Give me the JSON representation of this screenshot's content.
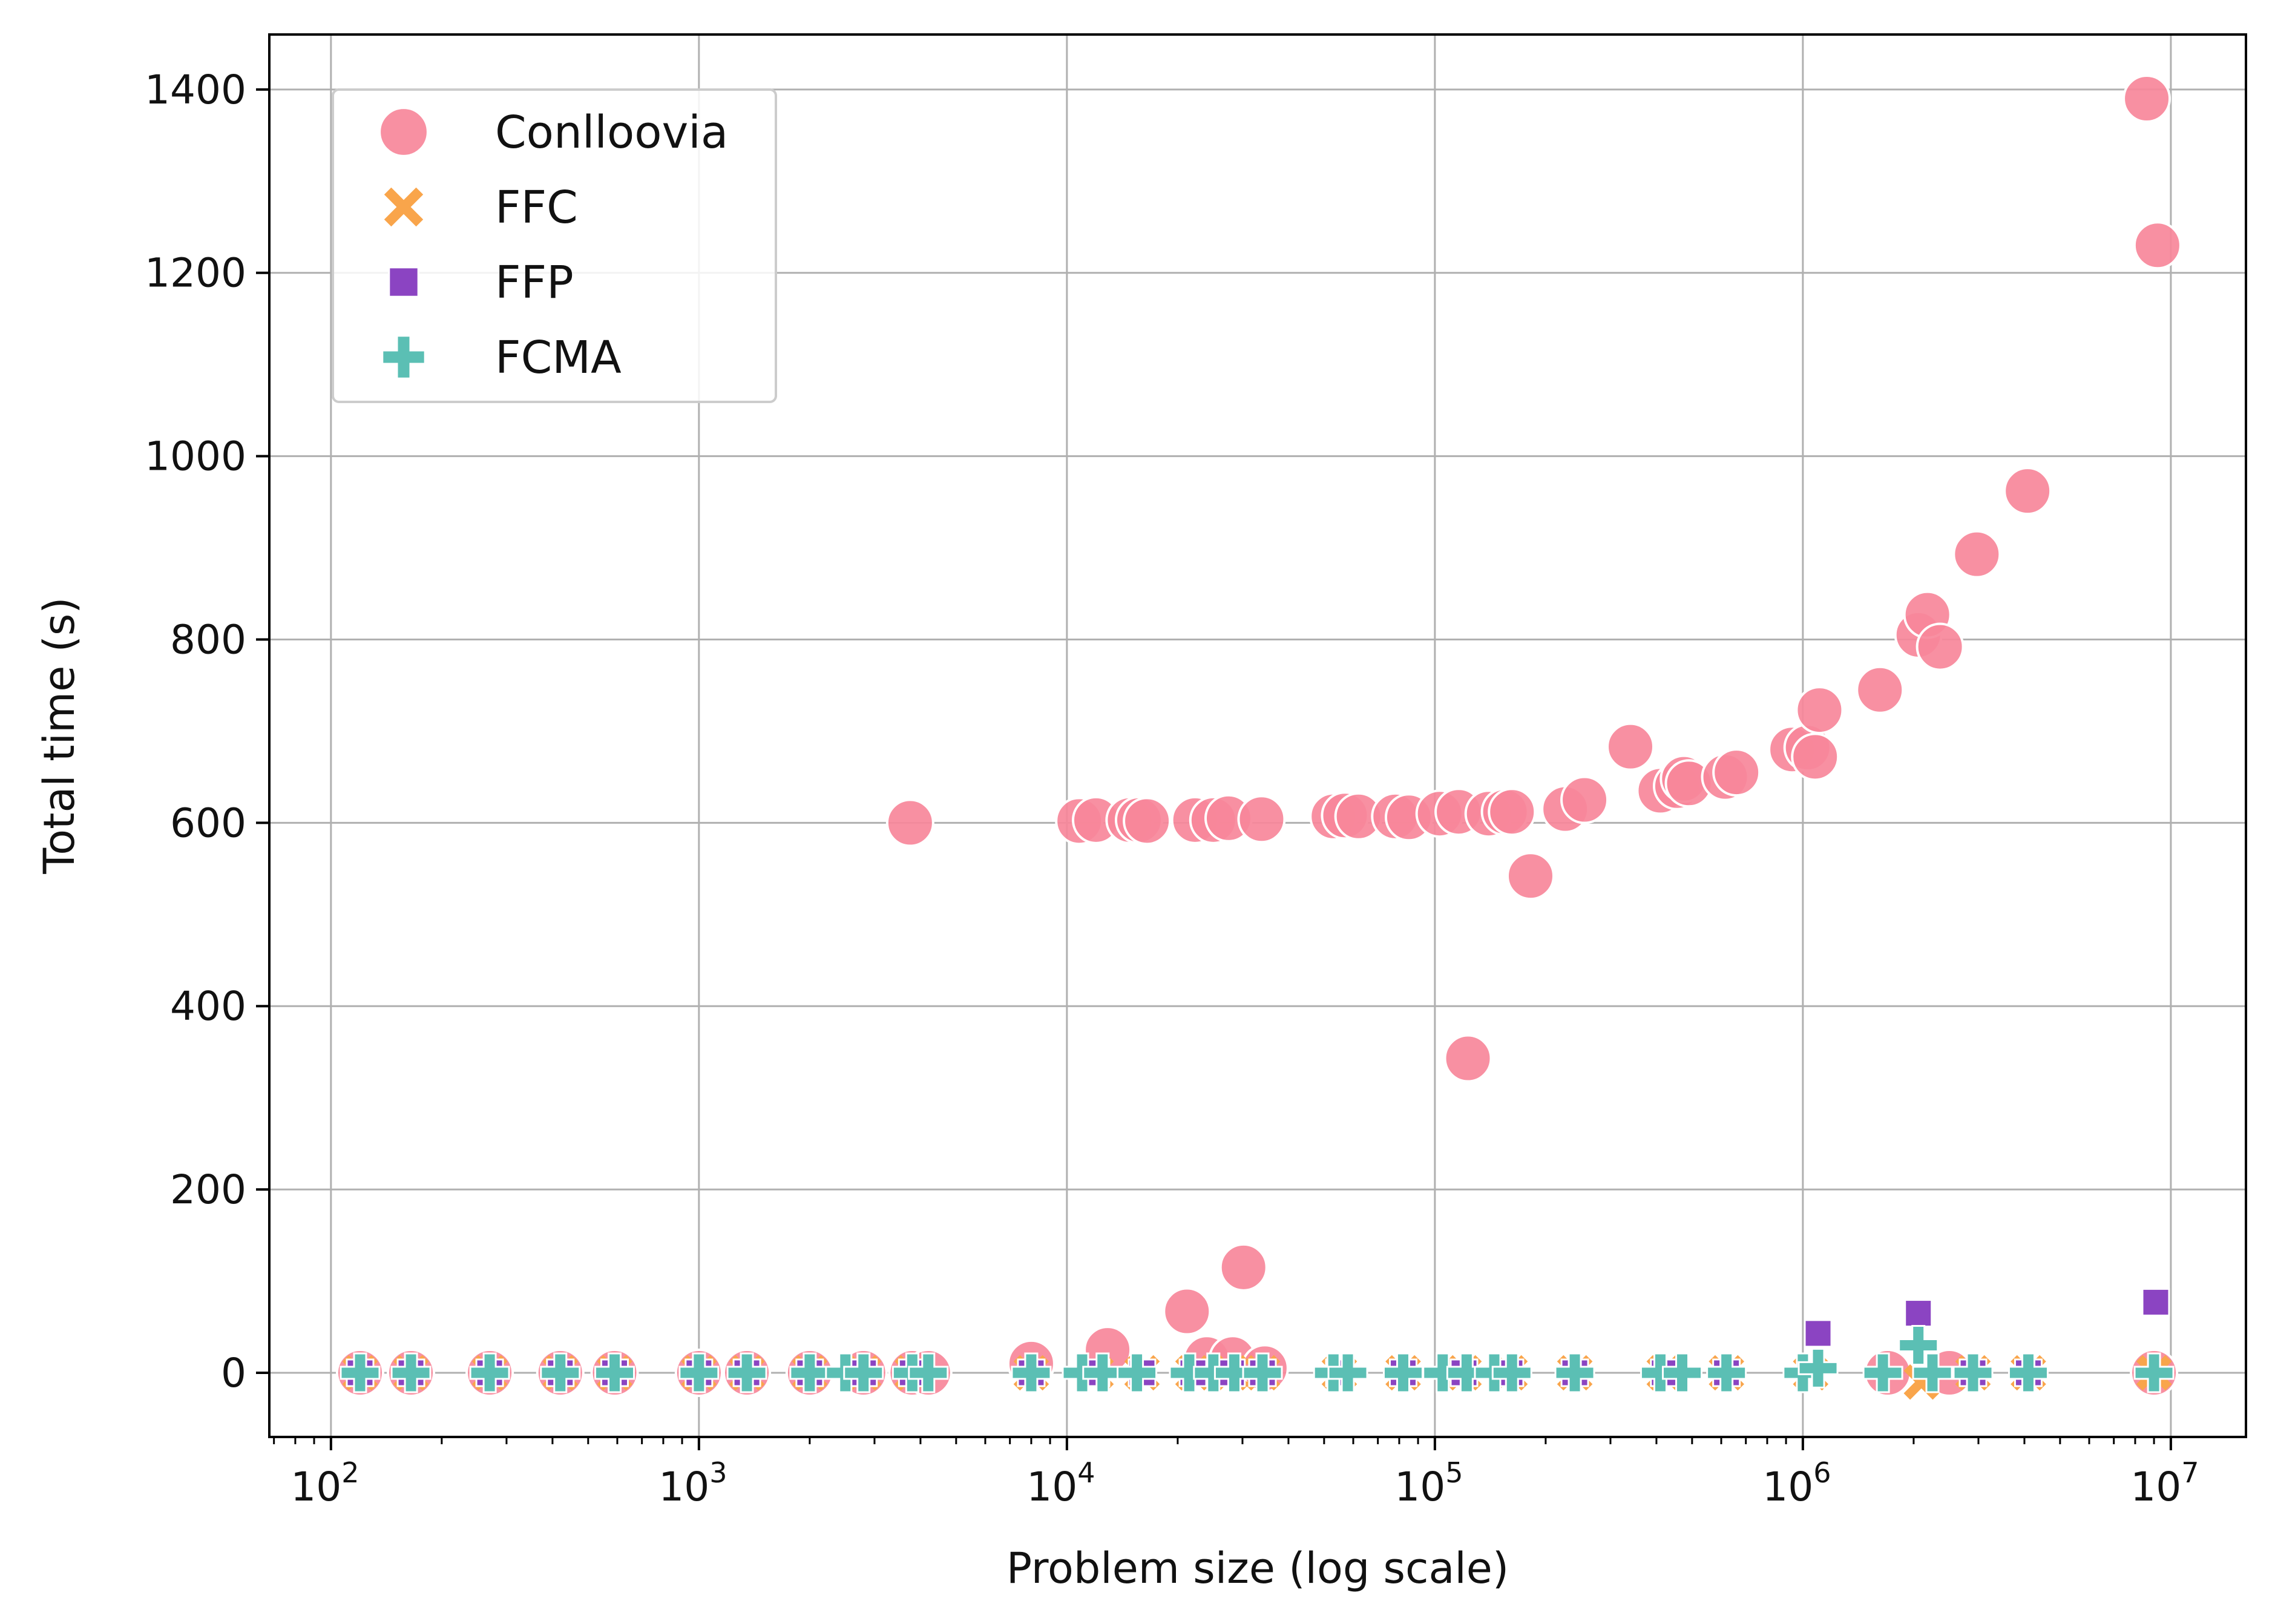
{
  "chart_data": {
    "type": "scatter",
    "title": "",
    "xlabel": "Problem size (log scale)",
    "ylabel": "Total time (s)",
    "xscale": "log",
    "xlim": [
      68,
      16000000
    ],
    "ylim": [
      -70,
      1460
    ],
    "grid": true,
    "legend_position": "top-left",
    "x_ticks": [
      {
        "value": 100,
        "base": "10",
        "exp": "2"
      },
      {
        "value": 1000,
        "base": "10",
        "exp": "3"
      },
      {
        "value": 10000,
        "base": "10",
        "exp": "4"
      },
      {
        "value": 100000,
        "base": "10",
        "exp": "5"
      },
      {
        "value": 1000000,
        "base": "10",
        "exp": "6"
      },
      {
        "value": 10000000,
        "base": "10",
        "exp": "7"
      }
    ],
    "y_ticks": [
      {
        "value": 0,
        "label": "0"
      },
      {
        "value": 200,
        "label": "200"
      },
      {
        "value": 400,
        "label": "400"
      },
      {
        "value": 600,
        "label": "600"
      },
      {
        "value": 800,
        "label": "800"
      },
      {
        "value": 1000,
        "label": "1000"
      },
      {
        "value": 1200,
        "label": "1200"
      },
      {
        "value": 1400,
        "label": "1400"
      }
    ],
    "series": [
      {
        "name": "Conlloovia",
        "marker": "circle",
        "color": "#f7879a",
        "points": [
          [
            120,
            0
          ],
          [
            165,
            0
          ],
          [
            270,
            0
          ],
          [
            420,
            0
          ],
          [
            590,
            0
          ],
          [
            1000,
            0
          ],
          [
            1350,
            0
          ],
          [
            2000,
            0
          ],
          [
            2800,
            0
          ],
          [
            3800,
            0
          ],
          [
            4200,
            0
          ],
          [
            3750,
            600
          ],
          [
            8000,
            10
          ],
          [
            10800,
            602
          ],
          [
            12000,
            603
          ],
          [
            12900,
            25
          ],
          [
            14800,
            603
          ],
          [
            15700,
            603
          ],
          [
            16500,
            602
          ],
          [
            21200,
            67
          ],
          [
            22300,
            603
          ],
          [
            24000,
            15
          ],
          [
            25000,
            603
          ],
          [
            27500,
            605
          ],
          [
            28200,
            15
          ],
          [
            30200,
            115
          ],
          [
            33800,
            604
          ],
          [
            34500,
            5
          ],
          [
            53000,
            607
          ],
          [
            57000,
            608
          ],
          [
            62000,
            607
          ],
          [
            78000,
            607
          ],
          [
            85000,
            606
          ],
          [
            103000,
            610
          ],
          [
            116000,
            612
          ],
          [
            123000,
            343
          ],
          [
            140000,
            610
          ],
          [
            155000,
            612
          ],
          [
            162000,
            612
          ],
          [
            182000,
            542
          ],
          [
            226000,
            615
          ],
          [
            255000,
            625
          ],
          [
            340000,
            683
          ],
          [
            410000,
            635
          ],
          [
            455000,
            640
          ],
          [
            475000,
            648
          ],
          [
            490000,
            643
          ],
          [
            615000,
            650
          ],
          [
            660000,
            655
          ],
          [
            935000,
            680
          ],
          [
            1030000,
            682
          ],
          [
            1080000,
            672
          ],
          [
            1110000,
            723
          ],
          [
            1620000,
            745
          ],
          [
            2060000,
            805
          ],
          [
            2180000,
            827
          ],
          [
            2360000,
            792
          ],
          [
            2970000,
            893
          ],
          [
            4080000,
            962
          ],
          [
            8600000,
            1390
          ],
          [
            9200000,
            1230
          ],
          [
            1700000,
            0
          ],
          [
            2500000,
            0
          ],
          [
            9000000,
            0
          ]
        ]
      },
      {
        "name": "FFC",
        "marker": "x",
        "color": "#f9a54b",
        "points": [
          [
            120,
            0
          ],
          [
            165,
            0
          ],
          [
            270,
            0
          ],
          [
            420,
            0
          ],
          [
            590,
            0
          ],
          [
            1000,
            0
          ],
          [
            1350,
            0
          ],
          [
            2000,
            0
          ],
          [
            2800,
            0
          ],
          [
            3800,
            0
          ],
          [
            8000,
            0
          ],
          [
            12000,
            0
          ],
          [
            16000,
            0
          ],
          [
            22000,
            0
          ],
          [
            28000,
            0
          ],
          [
            34000,
            0
          ],
          [
            55000,
            0
          ],
          [
            82000,
            0
          ],
          [
            120000,
            0
          ],
          [
            160000,
            0
          ],
          [
            240000,
            0
          ],
          [
            420000,
            0
          ],
          [
            620000,
            0
          ],
          [
            1050000,
            0
          ],
          [
            2100000,
            -10
          ],
          [
            2900000,
            0
          ],
          [
            4100000,
            0
          ],
          [
            9000000,
            0
          ]
        ]
      },
      {
        "name": "FFP",
        "marker": "square",
        "color": "#8b44c2",
        "points": [
          [
            120,
            0
          ],
          [
            165,
            0
          ],
          [
            270,
            0
          ],
          [
            420,
            0
          ],
          [
            590,
            0
          ],
          [
            1000,
            0
          ],
          [
            1350,
            0
          ],
          [
            2000,
            0
          ],
          [
            2800,
            0
          ],
          [
            3800,
            0
          ],
          [
            8000,
            0
          ],
          [
            12000,
            0
          ],
          [
            16000,
            0
          ],
          [
            22000,
            0
          ],
          [
            28000,
            0
          ],
          [
            34000,
            0
          ],
          [
            55000,
            0
          ],
          [
            82000,
            0
          ],
          [
            120000,
            0
          ],
          [
            160000,
            0
          ],
          [
            240000,
            0
          ],
          [
            420000,
            0
          ],
          [
            620000,
            0
          ],
          [
            1100000,
            43
          ],
          [
            2060000,
            65
          ],
          [
            2900000,
            0
          ],
          [
            4100000,
            0
          ],
          [
            9100000,
            77
          ]
        ]
      },
      {
        "name": "FCMA",
        "marker": "plus",
        "color": "#5bbfb4",
        "points": [
          [
            120,
            0
          ],
          [
            165,
            0
          ],
          [
            270,
            0
          ],
          [
            420,
            0
          ],
          [
            590,
            0
          ],
          [
            1000,
            0
          ],
          [
            1350,
            0
          ],
          [
            2000,
            0
          ],
          [
            2500,
            0
          ],
          [
            2800,
            0
          ],
          [
            3800,
            0
          ],
          [
            4200,
            0
          ],
          [
            8000,
            0
          ],
          [
            11000,
            0
          ],
          [
            12500,
            0
          ],
          [
            15500,
            0
          ],
          [
            21500,
            0
          ],
          [
            25000,
            0
          ],
          [
            28500,
            0
          ],
          [
            34000,
            0
          ],
          [
            53000,
            0
          ],
          [
            58000,
            0
          ],
          [
            82000,
            0
          ],
          [
            105000,
            0
          ],
          [
            122000,
            0
          ],
          [
            145000,
            0
          ],
          [
            162000,
            0
          ],
          [
            240000,
            0
          ],
          [
            410000,
            0
          ],
          [
            470000,
            0
          ],
          [
            620000,
            0
          ],
          [
            1000000,
            0
          ],
          [
            1100000,
            5
          ],
          [
            1650000,
            0
          ],
          [
            2060000,
            30
          ],
          [
            2250000,
            0
          ],
          [
            2900000,
            0
          ],
          [
            4100000,
            0
          ],
          [
            9000000,
            0
          ]
        ]
      }
    ]
  }
}
